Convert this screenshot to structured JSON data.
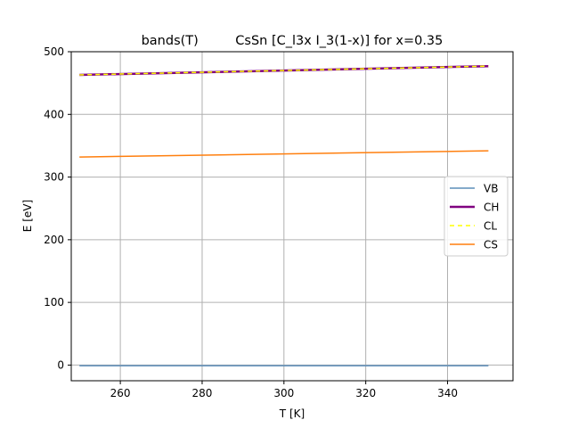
{
  "chart_data": {
    "type": "line",
    "title": "bands(T)         CsSn [C_l3x I_3(1-x)] for x=0.35",
    "xlabel": "T [K]",
    "ylabel": "E [eV]",
    "xlim": [
      248,
      356
    ],
    "ylim": [
      -25,
      500
    ],
    "xticks": [
      260,
      280,
      300,
      320,
      340
    ],
    "yticks": [
      0,
      100,
      200,
      300,
      400,
      500
    ],
    "xtick_labels": [
      "260",
      "280",
      "300",
      "320",
      "340"
    ],
    "ytick_labels": [
      "0",
      "100",
      "200",
      "300",
      "400",
      "500"
    ],
    "grid": true,
    "legend_position": "right",
    "series": [
      {
        "name": "VB",
        "color": "#5b8db8",
        "style": "solid",
        "x": [
          250,
          350
        ],
        "y": [
          -1,
          -1
        ]
      },
      {
        "name": "CH",
        "color": "#800080",
        "style": "solid-thick",
        "x": [
          250,
          350
        ],
        "y": [
          463,
          477
        ]
      },
      {
        "name": "CL",
        "color": "#ffff00",
        "style": "dashed",
        "x": [
          250,
          350
        ],
        "y": [
          463,
          477
        ]
      },
      {
        "name": "CS",
        "color": "#ff7f0e",
        "style": "solid",
        "x": [
          250,
          350
        ],
        "y": [
          332,
          342
        ]
      }
    ]
  }
}
